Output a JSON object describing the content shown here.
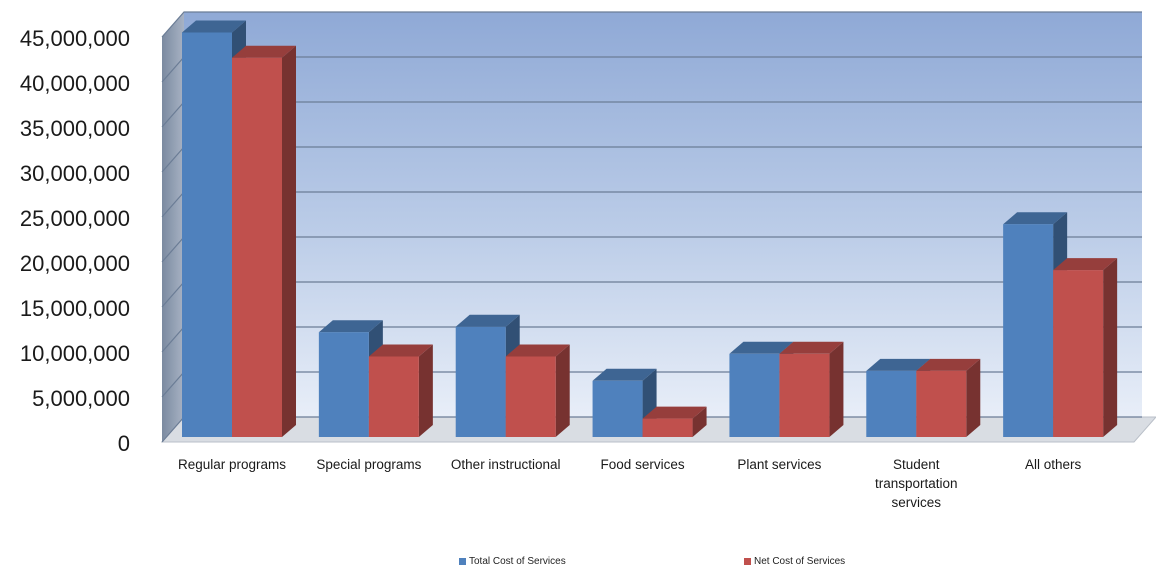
{
  "chart_data": {
    "type": "bar",
    "categories": [
      [
        "Regular programs"
      ],
      [
        "Special programs"
      ],
      [
        "Other instructional"
      ],
      [
        "Food services"
      ],
      [
        "Plant services"
      ],
      [
        "Student",
        "transportation",
        "services"
      ],
      [
        "All others"
      ]
    ],
    "series": [
      {
        "name": "Total Cost of Services",
        "color": "#4F81BD",
        "values": [
          45500000,
          12200000,
          12800000,
          6800000,
          9800000,
          7900000,
          24200000
        ]
      },
      {
        "name": "Net Cost of Services",
        "color": "#C0504D",
        "values": [
          42700000,
          9500000,
          9500000,
          2600000,
          9800000,
          7900000,
          19100000
        ]
      }
    ],
    "ylim": [
      0,
      45000000
    ],
    "yticks": [
      "0",
      "5,000,000",
      "10,000,000",
      "15,000,000",
      "20,000,000",
      "25,000,000",
      "30,000,000",
      "35,000,000",
      "40,000,000",
      "45,000,000"
    ],
    "grid": true,
    "legend": "bottom",
    "three_d": true
  }
}
